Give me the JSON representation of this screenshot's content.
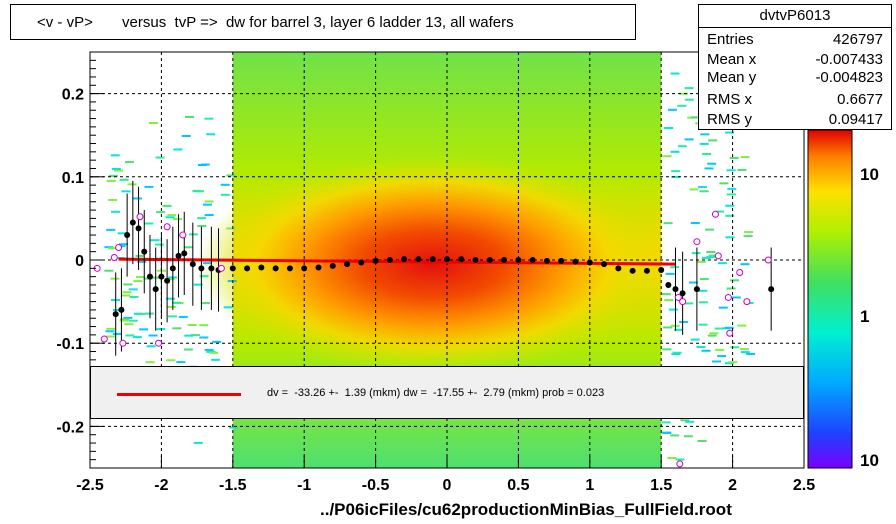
{
  "title": "<v - vP>       versus  tvP =>  dw for barrel 3, layer 6 ladder 13, all wafers",
  "stats": {
    "name": "dvtvP6013",
    "rows": [
      {
        "label": "Entries",
        "value": "426797"
      },
      {
        "label": "Mean x",
        "value": "-0.007433"
      },
      {
        "label": "Mean y",
        "value": "-0.004823"
      },
      {
        "label": "RMS x",
        "value": "0.6677"
      },
      {
        "label": "RMS y",
        "value": "0.09417"
      }
    ]
  },
  "legend_text": "dv =  -33.26 +-  1.39 (mkm) dw =  -17.55 +-  2.79 (mkm) prob = 0.023",
  "footer": "../P06icFiles/cu62productionMinBias_FullField.root",
  "colors": {
    "fit_line": "#ee0000",
    "profile": "#000000",
    "open_markers": "#cc00cc",
    "legend_bg": "#f0f0f0"
  },
  "chart_data": {
    "type": "heatmap",
    "xlim": [
      -2.5,
      2.5
    ],
    "ylim": [
      -0.25,
      0.25
    ],
    "x_ticks": [
      -2.5,
      -2,
      -1.5,
      -1,
      -0.5,
      0,
      0.5,
      1,
      1.5,
      2,
      2.5
    ],
    "x_tick_labels": [
      "-2.5",
      "-2",
      "-1.5",
      "-1",
      "-0.5",
      "0",
      "0.5",
      "1",
      "1.5",
      "2",
      "2.5"
    ],
    "y_ticks": [
      -0.2,
      -0.1,
      0,
      0.1,
      0.2
    ],
    "y_tick_labels": [
      "-0.2",
      "-0.1",
      "0",
      "0.1",
      "0.2"
    ],
    "grid": true,
    "log_z": true,
    "z_tick_labels": [
      "10",
      "1",
      "10"
    ],
    "dense_region_x": [
      -1.5,
      1.5
    ],
    "fit_line": {
      "x": [
        -2.3,
        1.6
      ],
      "y": [
        0.001,
        -0.005
      ]
    },
    "profile_filled": [
      {
        "x": -2.32,
        "y": -0.065
      },
      {
        "x": -2.28,
        "y": -0.06
      },
      {
        "x": -2.24,
        "y": 0.03
      },
      {
        "x": -2.2,
        "y": 0.045
      },
      {
        "x": -2.16,
        "y": 0.038
      },
      {
        "x": -2.12,
        "y": 0.01
      },
      {
        "x": -2.08,
        "y": -0.02
      },
      {
        "x": -2.04,
        "y": -0.035
      },
      {
        "x": -2.0,
        "y": -0.02
      },
      {
        "x": -1.96,
        "y": -0.025
      },
      {
        "x": -1.92,
        "y": -0.01
      },
      {
        "x": -1.88,
        "y": 0.005
      },
      {
        "x": -1.84,
        "y": 0.008
      },
      {
        "x": -1.78,
        "y": -0.005
      },
      {
        "x": -1.72,
        "y": -0.01
      },
      {
        "x": -1.65,
        "y": -0.01
      },
      {
        "x": -1.6,
        "y": -0.012
      },
      {
        "x": -1.5,
        "y": -0.01
      },
      {
        "x": -1.4,
        "y": -0.01
      },
      {
        "x": -1.3,
        "y": -0.009
      },
      {
        "x": -1.2,
        "y": -0.01
      },
      {
        "x": -1.1,
        "y": -0.01
      },
      {
        "x": -1.0,
        "y": -0.01
      },
      {
        "x": -0.9,
        "y": -0.009
      },
      {
        "x": -0.8,
        "y": -0.007
      },
      {
        "x": -0.7,
        "y": -0.005
      },
      {
        "x": -0.6,
        "y": -0.003
      },
      {
        "x": -0.5,
        "y": -0.001
      },
      {
        "x": -0.4,
        "y": 0.0
      },
      {
        "x": -0.3,
        "y": 0.001
      },
      {
        "x": -0.2,
        "y": 0.001
      },
      {
        "x": -0.1,
        "y": 0.001
      },
      {
        "x": 0.0,
        "y": 0.001
      },
      {
        "x": 0.1,
        "y": 0.001
      },
      {
        "x": 0.2,
        "y": 0.0
      },
      {
        "x": 0.3,
        "y": 0.0
      },
      {
        "x": 0.4,
        "y": 0.0
      },
      {
        "x": 0.5,
        "y": 0.0
      },
      {
        "x": 0.6,
        "y": 0.0
      },
      {
        "x": 0.7,
        "y": -0.001
      },
      {
        "x": 0.8,
        "y": -0.001
      },
      {
        "x": 0.9,
        "y": -0.002
      },
      {
        "x": 1.0,
        "y": -0.003
      },
      {
        "x": 1.1,
        "y": -0.005
      },
      {
        "x": 1.2,
        "y": -0.01
      },
      {
        "x": 1.3,
        "y": -0.013
      },
      {
        "x": 1.4,
        "y": -0.013
      },
      {
        "x": 1.5,
        "y": -0.012
      },
      {
        "x": 1.55,
        "y": -0.03
      },
      {
        "x": 1.6,
        "y": -0.035
      },
      {
        "x": 1.65,
        "y": -0.04
      },
      {
        "x": 1.75,
        "y": -0.035
      },
      {
        "x": 2.27,
        "y": -0.035
      }
    ],
    "profile_open": [
      {
        "x": -2.45,
        "y": -0.01
      },
      {
        "x": -2.4,
        "y": -0.095
      },
      {
        "x": -2.33,
        "y": 0.003
      },
      {
        "x": -2.3,
        "y": 0.015
      },
      {
        "x": -2.27,
        "y": -0.1
      },
      {
        "x": -2.15,
        "y": 0.052
      },
      {
        "x": -2.02,
        "y": -0.1
      },
      {
        "x": -1.96,
        "y": 0.04
      },
      {
        "x": -1.85,
        "y": 0.03
      },
      {
        "x": -1.58,
        "y": -0.01
      },
      {
        "x": 1.62,
        "y": -0.045
      },
      {
        "x": 1.65,
        "y": -0.05
      },
      {
        "x": 1.75,
        "y": 0.022
      },
      {
        "x": 1.88,
        "y": 0.055
      },
      {
        "x": 1.9,
        "y": 0.005
      },
      {
        "x": 1.97,
        "y": -0.045
      },
      {
        "x": 1.98,
        "y": -0.088
      },
      {
        "x": 2.05,
        "y": -0.015
      },
      {
        "x": 2.1,
        "y": -0.05
      },
      {
        "x": 2.25,
        "y": 0.0
      },
      {
        "x": 1.63,
        "y": -0.245
      }
    ]
  }
}
